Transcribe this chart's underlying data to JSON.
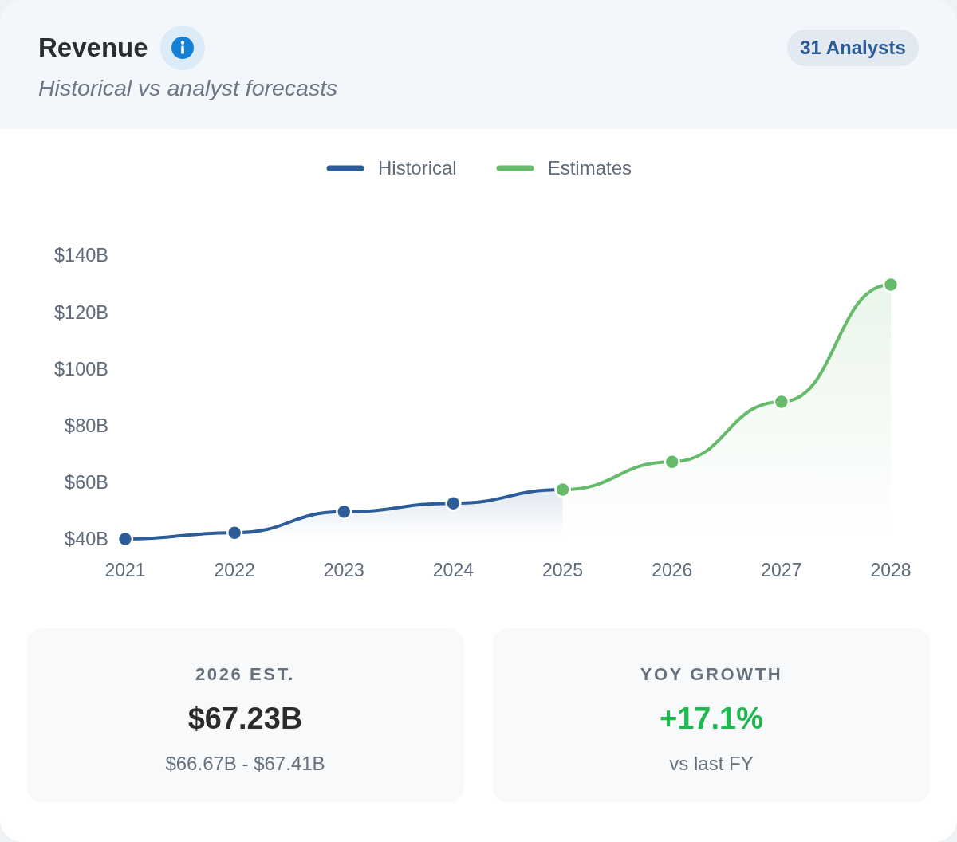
{
  "chart_data": {
    "type": "area",
    "title": "Revenue",
    "subtitle": "Historical vs analyst forecasts",
    "categories": [
      "2021",
      "2022",
      "2023",
      "2024",
      "2025",
      "2026",
      "2027",
      "2028"
    ],
    "series": [
      {
        "name": "Historical",
        "color": "#2d5d98",
        "values": [
          40,
          42.2,
          49.6,
          52.6,
          57.4,
          null,
          null,
          null
        ]
      },
      {
        "name": "Estimates",
        "color": "#66bb6a",
        "values": [
          null,
          null,
          null,
          null,
          57.4,
          67.2,
          88.3,
          129.6
        ]
      }
    ],
    "ylim": [
      40,
      140
    ],
    "yticks": [
      {
        "value": 40,
        "label": "$40B"
      },
      {
        "value": 60,
        "label": "$60B"
      },
      {
        "value": 80,
        "label": "$80B"
      },
      {
        "value": 100,
        "label": "$100B"
      },
      {
        "value": 120,
        "label": "$120B"
      },
      {
        "value": 140,
        "label": "$140B"
      }
    ],
    "legend": "top",
    "marker": "circle",
    "annotations": [
      "31 Analysts",
      "2026 EST.",
      "$67.23B",
      "$66.67B - $67.41B",
      "YOY GROWTH",
      "+17.1%",
      "vs last FY"
    ]
  }
}
